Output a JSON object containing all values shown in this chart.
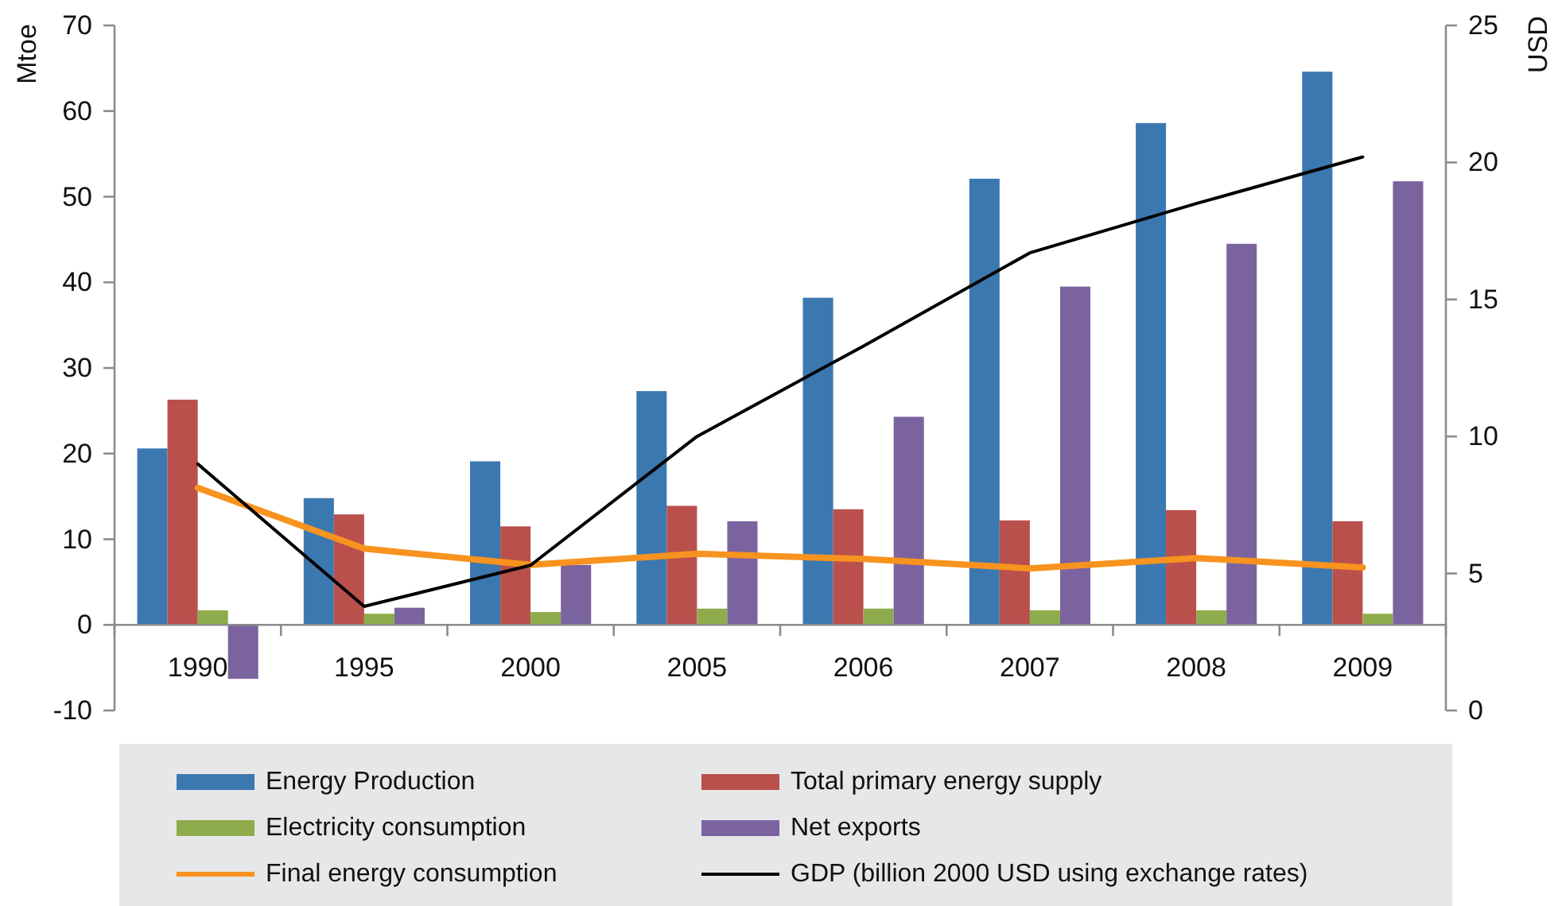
{
  "chart_data": {
    "type": "bar",
    "ylabel": "Mtoe",
    "y2label": "USD",
    "categories": [
      "1990",
      "1995",
      "2000",
      "2005",
      "2006",
      "2007",
      "2008",
      "2009"
    ],
    "series": [
      {
        "name": "Energy Production",
        "color": "#3c78b0",
        "values": [
          20.6,
          14.8,
          19.1,
          27.3,
          38.2,
          52.1,
          58.6,
          64.6
        ]
      },
      {
        "name": "Total primary energy supply",
        "color": "#b9504c",
        "values": [
          26.3,
          12.9,
          11.5,
          13.9,
          13.5,
          12.2,
          13.4,
          12.1
        ]
      },
      {
        "name": "Electricity consumption",
        "color": "#8fac4c",
        "values": [
          1.7,
          1.3,
          1.5,
          1.9,
          1.9,
          1.7,
          1.7,
          1.3
        ]
      },
      {
        "name": "Net exports",
        "color": "#7b63a0",
        "values": [
          -6.3,
          2.0,
          7.0,
          12.1,
          24.3,
          39.5,
          44.5,
          51.8
        ]
      },
      {
        "name": "Final energy consumption",
        "type": "line",
        "color": "#f7931e",
        "values": [
          16.0,
          8.9,
          7.0,
          8.3,
          7.7,
          6.6,
          7.8,
          6.7
        ]
      },
      {
        "name": "GDP (billion 2000 USD using exchange rates)",
        "type": "line",
        "axis": "y2",
        "color": "#000000",
        "values": [
          9.0,
          3.8,
          5.3,
          10.0,
          13.3,
          16.7,
          18.5,
          20.2
        ]
      }
    ],
    "ylim": [
      -10,
      70
    ],
    "yticks": [
      -10,
      0,
      10,
      20,
      30,
      40,
      50,
      60,
      70
    ],
    "y2lim": [
      0,
      25
    ],
    "y2ticks": [
      0,
      5,
      10,
      15,
      20,
      25
    ],
    "legend": "bottom"
  }
}
